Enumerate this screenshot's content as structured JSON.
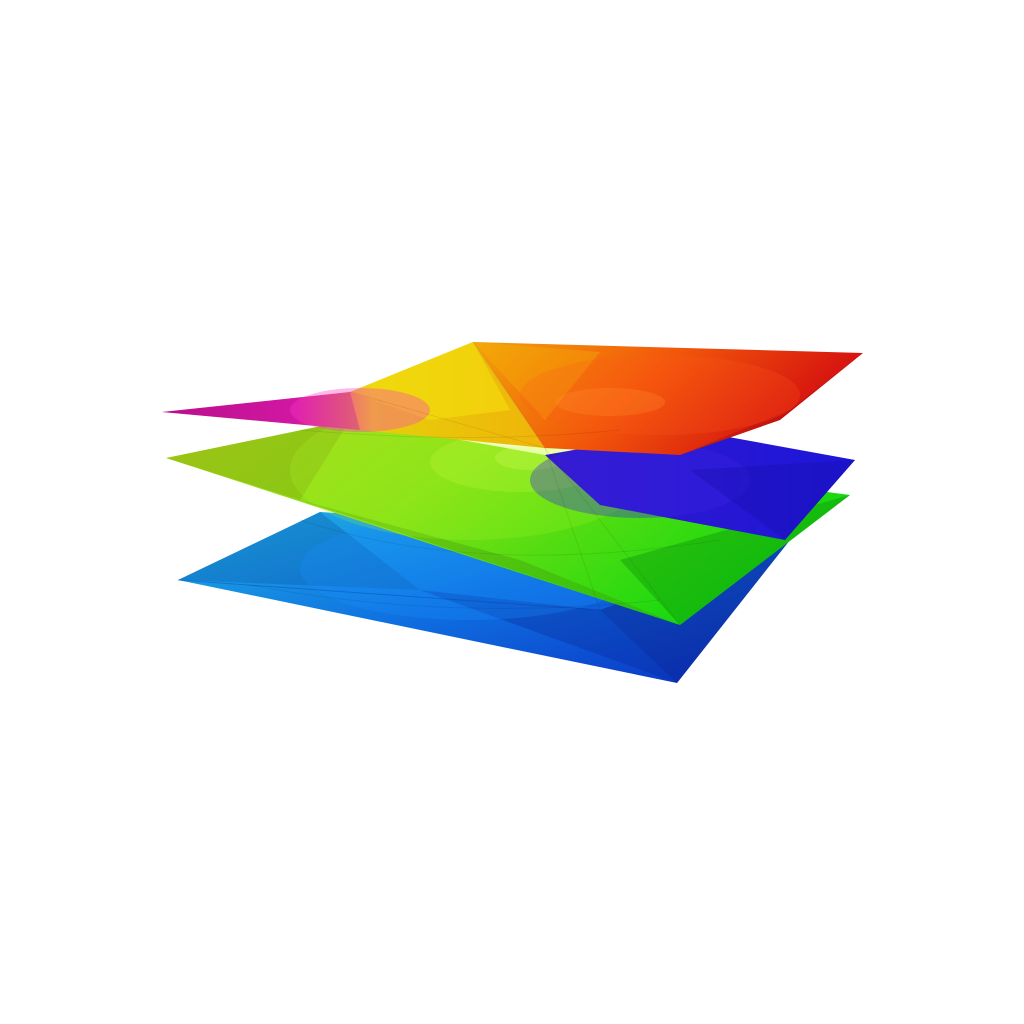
{
  "figure": {
    "subject": "cube-root-riemann-surface-icon",
    "sheets": [
      {
        "id": "sheet-bottom",
        "colors": [
          "#1aa7d9",
          "#0b33c9"
        ]
      },
      {
        "id": "sheet-middle",
        "colors": [
          "#a6e010",
          "#19d40f"
        ]
      },
      {
        "id": "sheet-top-left",
        "colors": [
          "#d9119e",
          "#f2d80d"
        ]
      },
      {
        "id": "sheet-top-right",
        "colors": [
          "#f58a06",
          "#e3100f"
        ]
      },
      {
        "id": "sheet-blue-wing",
        "colors": [
          "#1e18d8",
          "#3a16c5"
        ]
      }
    ]
  }
}
